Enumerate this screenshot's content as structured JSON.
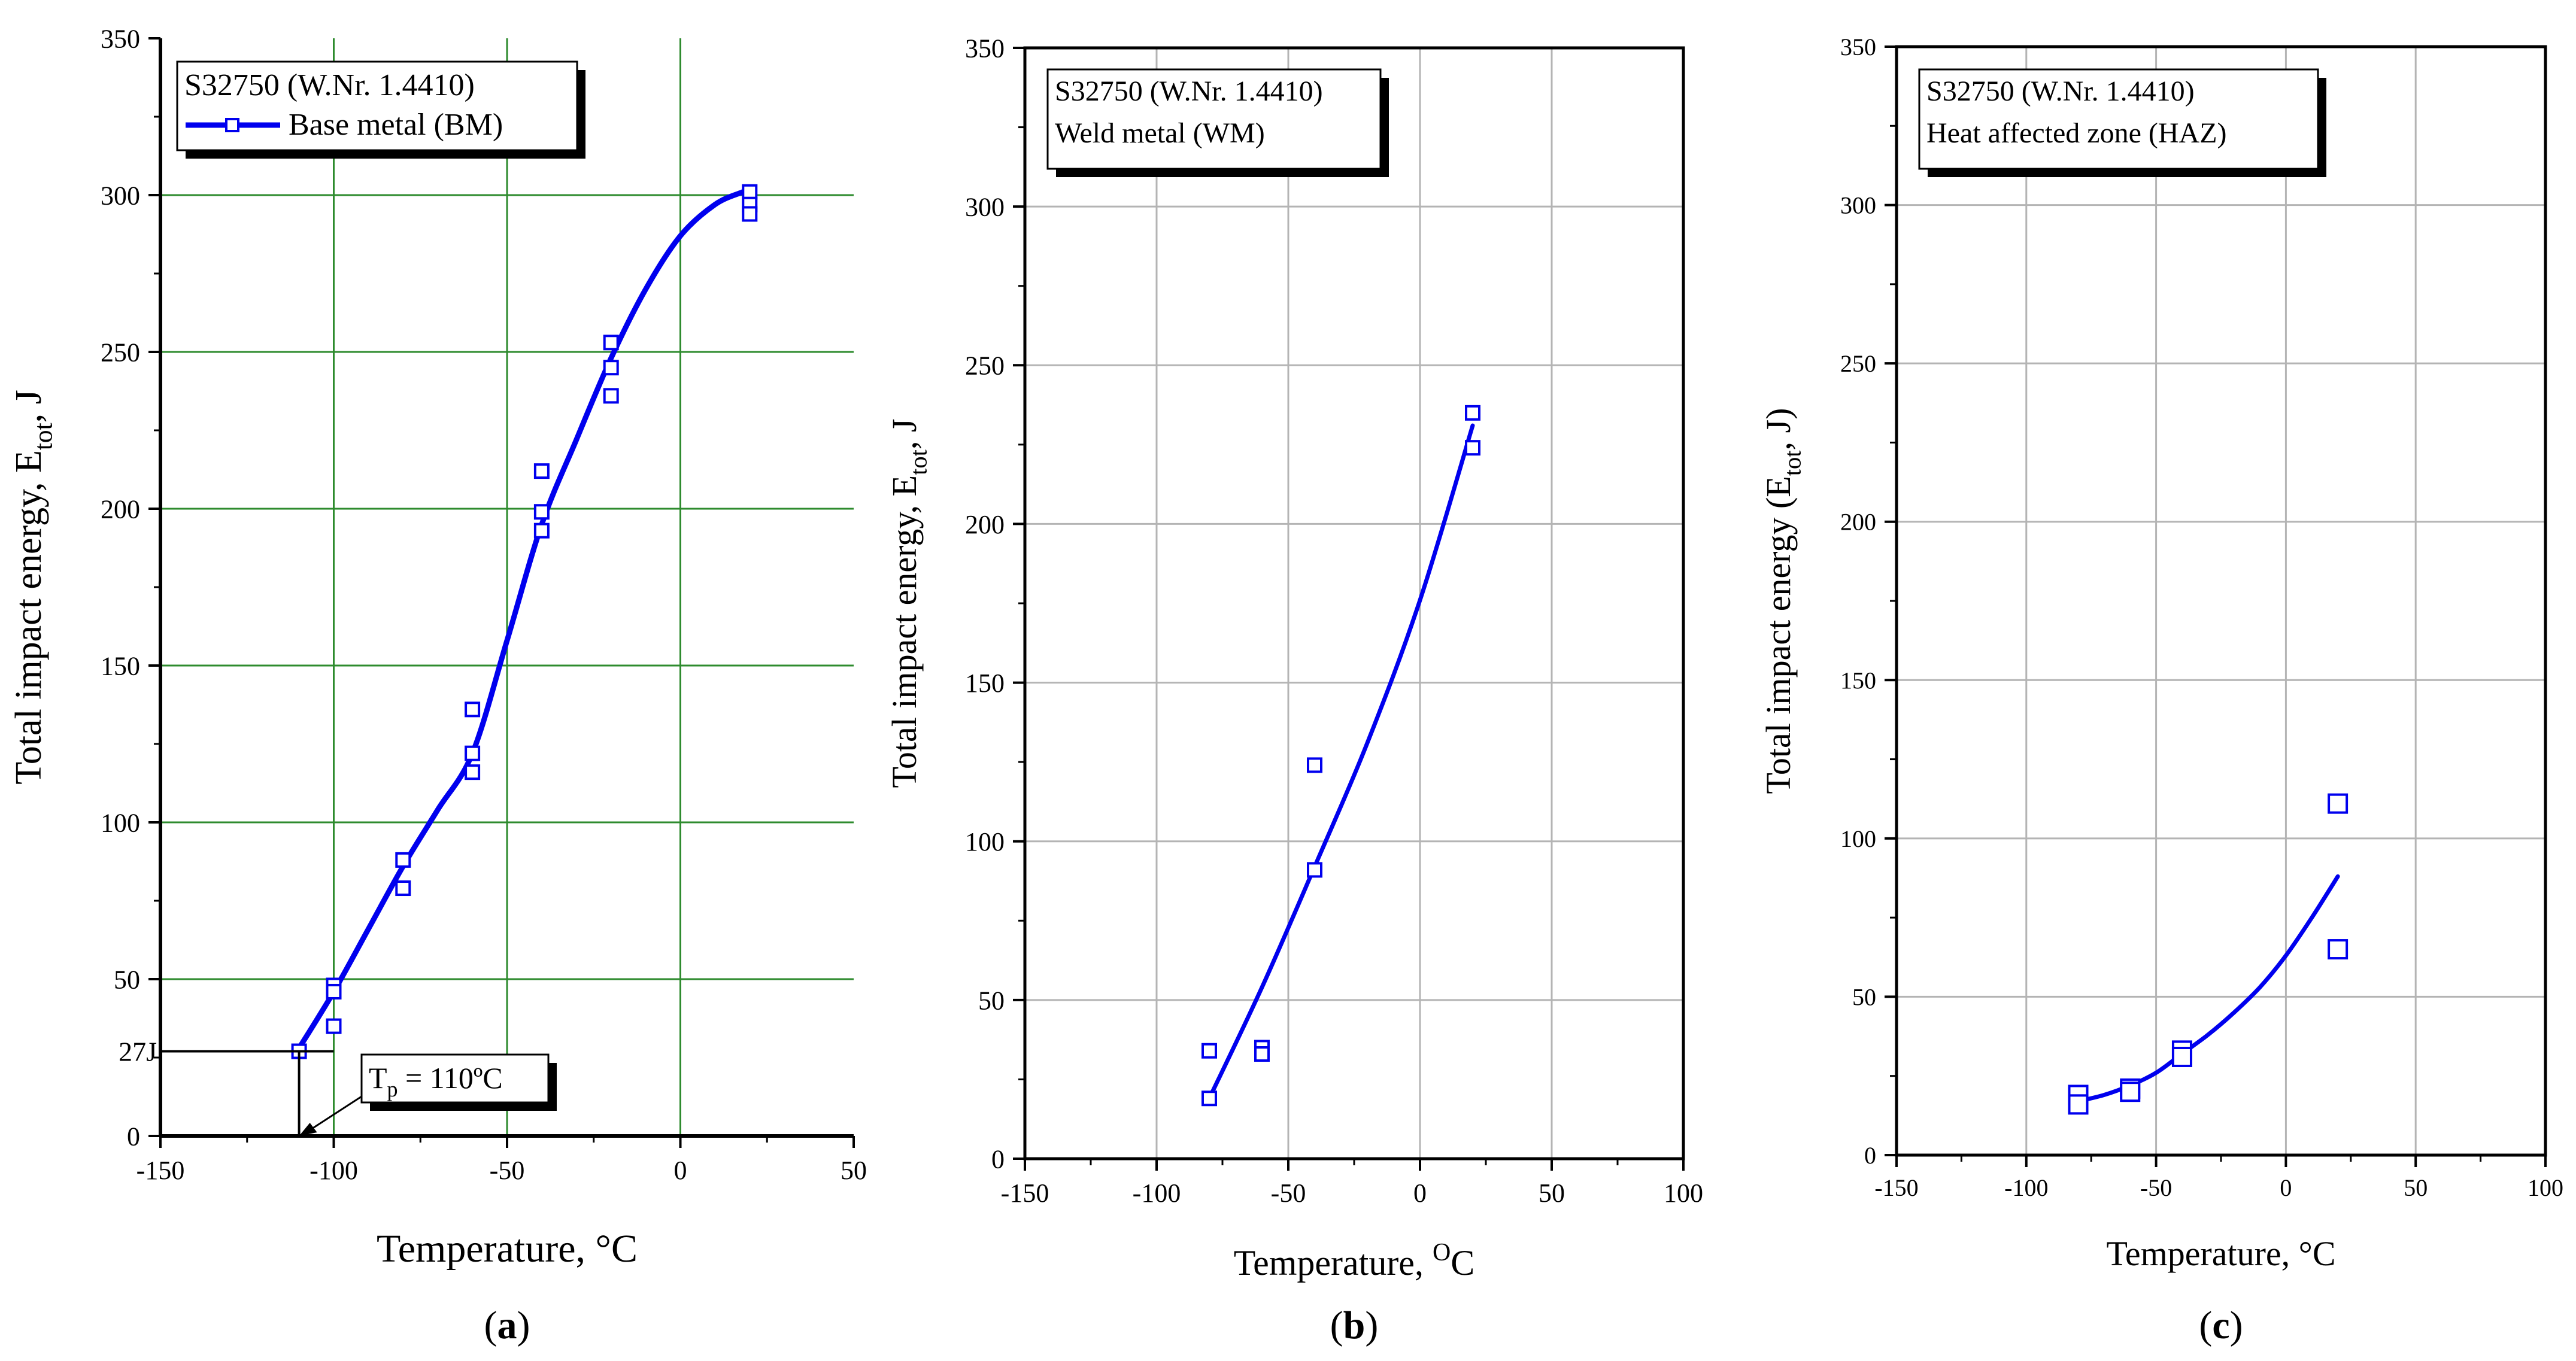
{
  "chart_data": [
    {
      "type": "scatter",
      "panel": "a",
      "caption": "a",
      "title": "",
      "xlabel": "Temperature,  °C",
      "ylabel_main": "Total impact energy, E",
      "ylabel_sub": "tot",
      "ylabel_tail": ", J",
      "xlim": [
        -150,
        50
      ],
      "ylim": [
        0,
        350
      ],
      "xticks": [
        -150,
        -100,
        -50,
        0,
        50
      ],
      "yticks": [
        0,
        50,
        100,
        150,
        200,
        250,
        300,
        350
      ],
      "grid": true,
      "grid_color": "#2e8b2e",
      "legend": {
        "title": "S32750 (W.Nr. 1.4410)",
        "entries": [
          "Base metal (BM)"
        ],
        "position": "top-left"
      },
      "series": [
        {
          "name": "Base metal (BM)",
          "color": "#0000ee",
          "points": [
            [
              -110,
              27
            ],
            [
              -100,
              48
            ],
            [
              -100,
              46
            ],
            [
              -100,
              35
            ],
            [
              -80,
              88
            ],
            [
              -80,
              79
            ],
            [
              -60,
              136
            ],
            [
              -60,
              122
            ],
            [
              -60,
              116
            ],
            [
              -40,
              212
            ],
            [
              -40,
              199
            ],
            [
              -40,
              193
            ],
            [
              -20,
              253
            ],
            [
              -20,
              245
            ],
            [
              -20,
              236
            ],
            [
              20,
              301
            ],
            [
              20,
              297
            ],
            [
              20,
              294
            ]
          ],
          "fit": [
            [
              -110,
              28
            ],
            [
              -100,
              46
            ],
            [
              -90,
              66
            ],
            [
              -80,
              86
            ],
            [
              -70,
              104
            ],
            [
              -60,
              122
            ],
            [
              -50,
              158
            ],
            [
              -40,
              195
            ],
            [
              -30,
              222
            ],
            [
              -20,
              248
            ],
            [
              -10,
              270
            ],
            [
              0,
              287
            ],
            [
              10,
              297
            ],
            [
              18,
              301
            ]
          ]
        }
      ],
      "annotations": {
        "y_marker": "27J",
        "y_marker_value": 27,
        "tp_prefix": "T",
        "tp_sub": "p",
        "tp_suffix": " = 110ºC",
        "tp_value": -110
      }
    },
    {
      "type": "scatter",
      "panel": "b",
      "caption": "b",
      "title": "",
      "xlabel_prefix": "Temperature, ",
      "xlabel_sup": "O",
      "xlabel_suffix": "C",
      "ylabel_main": "Total impact energy, E",
      "ylabel_sub": "tot",
      "ylabel_tail": ", J",
      "xlim": [
        -150,
        100
      ],
      "ylim": [
        0,
        350
      ],
      "xticks": [
        -150,
        -100,
        -50,
        0,
        50,
        100
      ],
      "yticks": [
        0,
        50,
        100,
        150,
        200,
        250,
        300,
        350
      ],
      "grid": true,
      "grid_color": "#b4b4b4",
      "legend": {
        "title": "S32750 (W.Nr. 1.4410)",
        "entries": [
          "Weld metal (WM)"
        ],
        "position": "top-left"
      },
      "series": [
        {
          "name": "Weld metal (WM)",
          "color": "#0000ee",
          "points": [
            [
              -80,
              34
            ],
            [
              -80,
              19
            ],
            [
              -60,
              35
            ],
            [
              -60,
              33
            ],
            [
              -40,
              124
            ],
            [
              -40,
              91
            ],
            [
              20,
              235
            ],
            [
              20,
              224
            ]
          ],
          "fit": [
            [
              -80,
              19
            ],
            [
              -60,
              54
            ],
            [
              -40,
              92
            ],
            [
              -20,
              131
            ],
            [
              0,
              176
            ],
            [
              20,
              231
            ]
          ]
        }
      ]
    },
    {
      "type": "scatter",
      "panel": "c",
      "caption": "c",
      "title": "",
      "xlabel": "Temperature, °C",
      "ylabel_main": "Total impact energy (E",
      "ylabel_sub": "tot",
      "ylabel_tail": ", J)",
      "xlim": [
        -150,
        100
      ],
      "ylim": [
        0,
        350
      ],
      "xticks": [
        -150,
        -100,
        -50,
        0,
        50,
        100
      ],
      "yticks": [
        0,
        50,
        100,
        150,
        200,
        250,
        300,
        350
      ],
      "grid": true,
      "grid_color": "#b4b4b4",
      "legend": {
        "title": "S32750 (W.Nr. 1.4410)",
        "entries": [
          "Heat affected zone (HAZ)"
        ],
        "position": "top-left"
      },
      "series": [
        {
          "name": "Heat affected zone (HAZ)",
          "color": "#0000ee",
          "points": [
            [
              -80,
              19
            ],
            [
              -80,
              16
            ],
            [
              -60,
              21
            ],
            [
              -60,
              20
            ],
            [
              -40,
              33
            ],
            [
              -40,
              31
            ],
            [
              20,
              111
            ],
            [
              20,
              65
            ]
          ],
          "fit": [
            [
              -80,
              17
            ],
            [
              -70,
              19
            ],
            [
              -60,
              22
            ],
            [
              -50,
              26
            ],
            [
              -40,
              32
            ],
            [
              -30,
              38
            ],
            [
              -20,
              45
            ],
            [
              -10,
              53
            ],
            [
              0,
              63
            ],
            [
              10,
              75
            ],
            [
              20,
              88
            ]
          ]
        }
      ]
    }
  ]
}
